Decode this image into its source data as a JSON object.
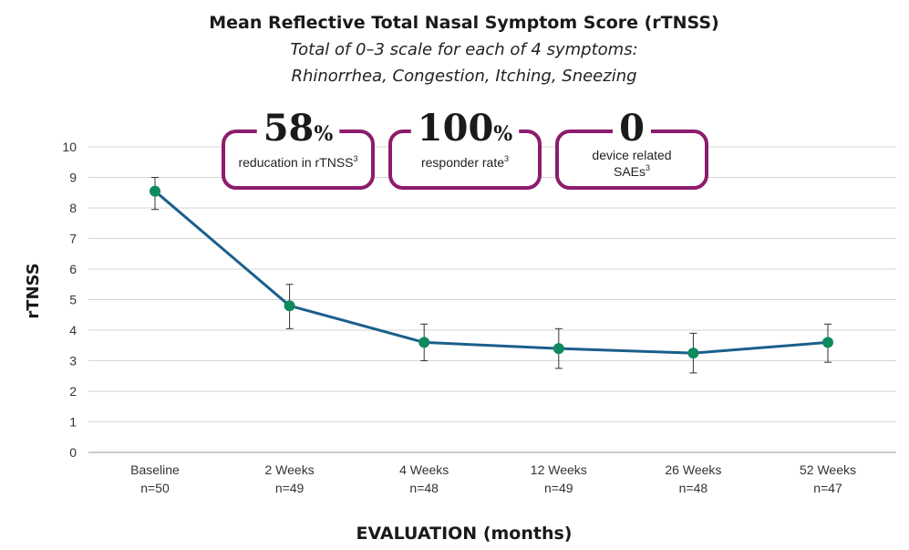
{
  "chart_data": {
    "type": "line",
    "title": "Mean Reflective Total Nasal Symptom Score (rTNSS)",
    "subtitle_lines": [
      "Total of 0–3 scale for each of 4 symptoms:",
      "Rhinorrhea, Congestion, Itching, Sneezing"
    ],
    "xlabel": "EVALUATION (months)",
    "ylabel": "rTNSS",
    "ylim": [
      0,
      10
    ],
    "yticks": [
      "0",
      "1",
      "2",
      "3",
      "4",
      "5",
      "6",
      "7",
      "8",
      "9",
      "10"
    ],
    "grid": true,
    "categories": [
      {
        "label": "Baseline",
        "n": "n=50"
      },
      {
        "label": "2 Weeks",
        "n": "n=49"
      },
      {
        "label": "4 Weeks",
        "n": "n=48"
      },
      {
        "label": "12 Weeks",
        "n": "n=49"
      },
      {
        "label": "26 Weeks",
        "n": "n=48"
      },
      {
        "label": "52 Weeks",
        "n": "n=47"
      }
    ],
    "series": [
      {
        "values": [
          8.55,
          4.8,
          3.6,
          3.4,
          3.25,
          3.6
        ],
        "error_low": [
          7.95,
          4.05,
          3.0,
          2.75,
          2.6,
          2.95
        ],
        "error_high": [
          9.0,
          5.5,
          4.2,
          4.05,
          3.9,
          4.2
        ]
      }
    ],
    "colors": {
      "line": "#1a5f8c",
      "marker": "#0f8a5f",
      "callout_border": "#8c1c6c"
    },
    "callouts": [
      {
        "big": "58",
        "suffix": "%",
        "text_lines": [
          "reducation in rTNSS"
        ],
        "sup": "3"
      },
      {
        "big": "100",
        "suffix": "%",
        "text_lines": [
          "responder rate"
        ],
        "sup": "3"
      },
      {
        "big": "0",
        "suffix": "",
        "text_lines": [
          "device related",
          "SAEs"
        ],
        "sup": "3"
      }
    ]
  }
}
